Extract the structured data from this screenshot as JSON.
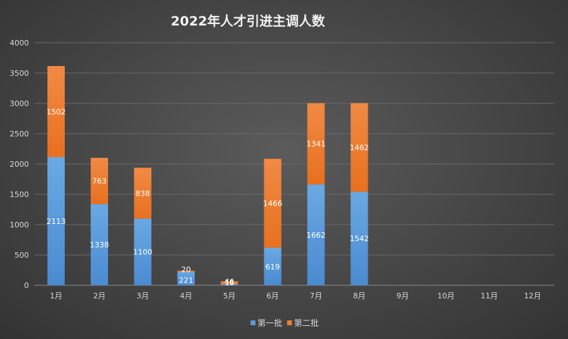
{
  "chart_data": {
    "type": "bar",
    "stacked": true,
    "title": "2022年人才引进主调人数",
    "categories": [
      "1月",
      "2月",
      "3月",
      "4月",
      "5月",
      "6月",
      "7月",
      "8月",
      "9月",
      "10月",
      "11月",
      "12月"
    ],
    "series": [
      {
        "name": "第一批",
        "color": "#5b9bd5",
        "values": [
          2113,
          1338,
          1100,
          221,
          18,
          619,
          1662,
          1542,
          null,
          null,
          null,
          null
        ]
      },
      {
        "name": "第二批",
        "color": "#ed7d31",
        "values": [
          1502,
          763,
          838,
          20,
          46,
          1466,
          1341,
          1462,
          null,
          null,
          null,
          null
        ]
      }
    ],
    "ylim": [
      0,
      4000
    ],
    "yticks": [
      0,
      500,
      1000,
      1500,
      2000,
      2500,
      3000,
      3500,
      4000
    ],
    "grid": true,
    "legend": "bottom"
  }
}
